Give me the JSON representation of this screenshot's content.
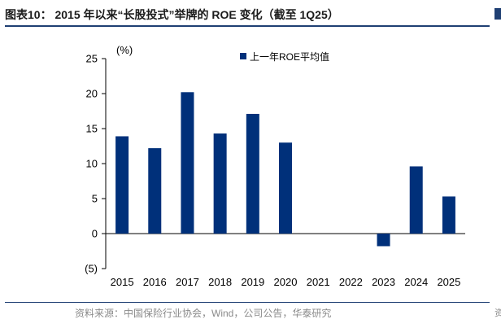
{
  "page": {
    "title": "图表10：  2015 年以来“长股投式”举牌的 ROE 变化（截至 1Q25）",
    "source": "资料来源：中国保险行业协会，Wind，公司公告，华泰研究",
    "edge_fragment": "资"
  },
  "colors": {
    "bar": "#00307a",
    "axis": "#000000",
    "title_rule": "#1f3f73"
  },
  "chart_data": {
    "type": "bar",
    "title": "",
    "ylabel": "(%)",
    "xlabel": "",
    "categories": [
      "2015",
      "2016",
      "2017",
      "2018",
      "2019",
      "2020",
      "2021",
      "2022",
      "2023",
      "2024",
      "2025"
    ],
    "series": [
      {
        "name": "上一年ROE平均值",
        "values": [
          13.9,
          12.2,
          20.2,
          14.3,
          17.1,
          13.0,
          0,
          0,
          -1.8,
          9.6,
          5.3
        ]
      }
    ],
    "ylim": [
      -5,
      25
    ],
    "yticks": [
      -5,
      0,
      5,
      10,
      15,
      20,
      25
    ],
    "ytick_labels": [
      "(5)",
      "0",
      "5",
      "10",
      "15",
      "20",
      "25"
    ],
    "grid": false,
    "legend": "top-center"
  }
}
